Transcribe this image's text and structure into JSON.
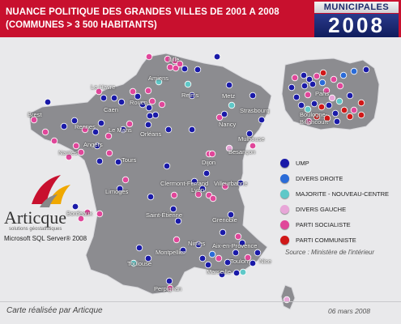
{
  "header": {
    "title_line1": "NUANCE POLITIQUE DES GRANDES VILLES DE 2001 A 2008",
    "title_line2": "(COMMUNES > 3 500 HABITANTS)"
  },
  "badge": {
    "top": "MUNICIPALES",
    "year": "2008"
  },
  "colors": {
    "UMP": "#1a1aa8",
    "DVD": "#2a6bd8",
    "NC": "#5fc8c8",
    "DVG": "#e8a6d8",
    "PS": "#e0479a",
    "PC": "#d01818",
    "header": "#c8102e"
  },
  "legend": [
    {
      "key": "UMP",
      "label": "UMP"
    },
    {
      "key": "DVD",
      "label": "DIVERS DROITE"
    },
    {
      "key": "NC",
      "label": "MAJORITE - NOUVEAU-CENTRE"
    },
    {
      "key": "DVG",
      "label": "DIVERS GAUCHE"
    },
    {
      "key": "PS",
      "label": "PARTI SOCIALISTE"
    },
    {
      "key": "PC",
      "label": "PARTI COMMUNISTE"
    }
  ],
  "cities": [
    "Lille",
    "Amiens",
    "Le Havre",
    "Rouen",
    "Caen",
    "Reims",
    "Metz",
    "Strasbourg",
    "Nancy",
    "Brest",
    "Rennes",
    "Le Mans",
    "Orléans",
    "Angers",
    "Nantes",
    "Tours",
    "Mulhouse",
    "Besançon",
    "Dijon",
    "Limoges",
    "Clermont-Ferrand",
    "Villeurbanne",
    "Lyon",
    "Bordeaux",
    "Saint-Étienne",
    "Grenoble",
    "Nimes",
    "Montpellier",
    "Aix-en-Provence",
    "Toulouse",
    "Toulon",
    "Nice",
    "Marseille",
    "Perpignan"
  ],
  "inset_labels": [
    "Paris",
    "Boulogne-Billancourt"
  ],
  "source": "Source : Ministère de l'intérieur",
  "footer": {
    "made_by": "Carte réalisée par Articque",
    "date": "06 mars 2008"
  },
  "logo": {
    "name": "Articque",
    "tagline": "solutions géostatistiques",
    "product": "Microsoft SQL Server® 2008"
  }
}
